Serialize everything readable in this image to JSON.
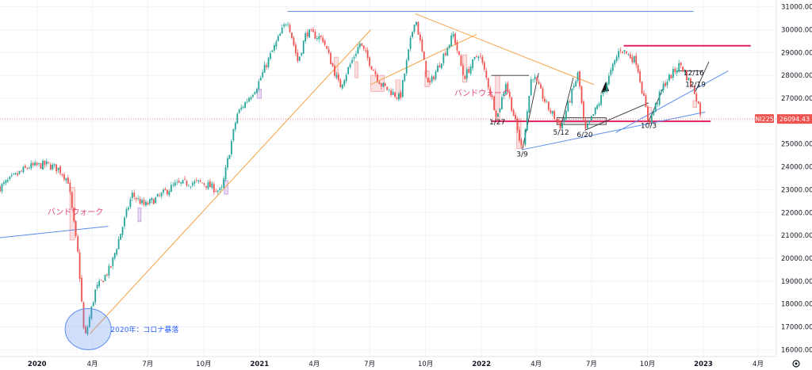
{
  "chart_data": {
    "type": "candlestick",
    "symbol": "NI225",
    "last_price": "26094.43",
    "ylim": [
      15700,
      31300
    ],
    "xlim": [
      "2019-11-01",
      "2023-05-01"
    ],
    "y_ticks": [
      16000,
      17000,
      18000,
      19000,
      20000,
      21000,
      22000,
      23000,
      24000,
      25000,
      26000,
      27000,
      28000,
      29000,
      30000,
      31000
    ],
    "y_tick_labels": [
      "16000.00",
      "17000.00",
      "18000.00",
      "19000.00",
      "20000.00",
      "21000.00",
      "22000.00",
      "23000.00",
      "24000.00",
      "25000.00",
      "26000.00",
      "27000.00",
      "28000.00",
      "29000.00",
      "30000.00",
      "31000.00"
    ],
    "x_ticks": [
      {
        "date": "2020-01-01",
        "label": "2020",
        "bold": true
      },
      {
        "date": "2020-04-01",
        "label": "4月"
      },
      {
        "date": "2020-07-01",
        "label": "7月"
      },
      {
        "date": "2020-10-01",
        "label": "10月"
      },
      {
        "date": "2021-01-01",
        "label": "2021",
        "bold": true
      },
      {
        "date": "2021-04-01",
        "label": "4月"
      },
      {
        "date": "2021-07-01",
        "label": "7月"
      },
      {
        "date": "2021-10-01",
        "label": "10月"
      },
      {
        "date": "2022-01-01",
        "label": "2022",
        "bold": true
      },
      {
        "date": "2022-04-01",
        "label": "4月"
      },
      {
        "date": "2022-07-01",
        "label": "7月"
      },
      {
        "date": "2022-10-01",
        "label": "10月"
      },
      {
        "date": "2023-01-01",
        "label": "2023",
        "bold": true
      },
      {
        "date": "2023-04-01",
        "label": "4月"
      }
    ],
    "price_path": [
      [
        "2019-11-01",
        23100
      ],
      [
        "2019-12-01",
        23700
      ],
      [
        "2019-12-18",
        24000
      ],
      [
        "2020-01-17",
        24100
      ],
      [
        "2020-02-06",
        23900
      ],
      [
        "2020-02-21",
        23400
      ],
      [
        "2020-03-09",
        20000
      ],
      [
        "2020-03-19",
        16400
      ],
      [
        "2020-04-06",
        18600
      ],
      [
        "2020-05-01",
        19600
      ],
      [
        "2020-06-05",
        22800
      ],
      [
        "2020-06-26",
        22300
      ],
      [
        "2020-07-20",
        22700
      ],
      [
        "2020-08-14",
        23200
      ],
      [
        "2020-09-04",
        23300
      ],
      [
        "2020-09-30",
        23300
      ],
      [
        "2020-10-30",
        22900
      ],
      [
        "2020-11-25",
        26300
      ],
      [
        "2020-12-29",
        27600
      ],
      [
        "2021-01-14",
        28600
      ],
      [
        "2021-02-16",
        30470
      ],
      [
        "2021-03-05",
        28600
      ],
      [
        "2021-03-19",
        29900
      ],
      [
        "2021-04-15",
        29600
      ],
      [
        "2021-05-13",
        27500
      ],
      [
        "2021-06-15",
        29400
      ],
      [
        "2021-07-20",
        27600
      ],
      [
        "2021-08-20",
        27000
      ],
      [
        "2021-09-14",
        30600
      ],
      [
        "2021-10-06",
        27500
      ],
      [
        "2021-11-16",
        29800
      ],
      [
        "2021-12-03",
        27900
      ],
      [
        "2021-12-28",
        29000
      ],
      [
        "2022-01-27",
        26170
      ],
      [
        "2022-02-10",
        27700
      ],
      [
        "2022-03-09",
        24700
      ],
      [
        "2022-03-25",
        28100
      ],
      [
        "2022-04-20",
        26600
      ],
      [
        "2022-05-12",
        25750
      ],
      [
        "2022-06-09",
        28100
      ],
      [
        "2022-06-20",
        25500
      ],
      [
        "2022-07-15",
        26900
      ],
      [
        "2022-08-17",
        29200
      ],
      [
        "2022-09-13",
        28600
      ],
      [
        "2022-10-03",
        25900
      ],
      [
        "2022-10-28",
        27600
      ],
      [
        "2022-11-24",
        28500
      ],
      [
        "2022-12-19",
        27200
      ],
      [
        "2022-12-30",
        26094
      ]
    ],
    "reference_lines": [
      {
        "from": [
          "2021-02-16",
          30800
        ],
        "to": [
          "2022-12-16",
          30800
        ],
        "color": "#5b8def"
      },
      {
        "from": [
          "2022-08-23",
          29300
        ],
        "to": [
          "2023-03-20",
          29300
        ],
        "color": "#e0245e"
      },
      {
        "from": [
          "2022-01-17",
          25990
        ],
        "to": [
          "2023-01-13",
          25990
        ],
        "color": "#e0245e"
      },
      {
        "from": [
          "2020-03-28",
          16700
        ],
        "to": [
          "2021-07-03",
          30000
        ],
        "color": "#f5a243"
      },
      {
        "from": [
          "2021-09-14",
          30700
        ],
        "to": [
          "2022-07-05",
          27600
        ],
        "color": "#f5a243"
      },
      {
        "from": [
          "2021-07-03",
          27600
        ],
        "to": [
          "2021-12-24",
          29800
        ],
        "color": "#f5a243"
      },
      {
        "from": [
          "2019-11-01",
          20900
        ],
        "to": [
          "2020-04-27",
          21400
        ],
        "color": "#5b8def"
      },
      {
        "from": [
          "2022-03-09",
          24750
        ],
        "to": [
          "2023-01-04",
          26400
        ],
        "color": "#5b8def"
      },
      {
        "from": [
          "2022-08-10",
          25500
        ],
        "to": [
          "2023-02-11",
          28200
        ],
        "color": "#5b8def"
      }
    ],
    "annotations": [
      {
        "date": "2022-01-27",
        "price": 25850,
        "text": "1/27"
      },
      {
        "date": "2022-03-09",
        "price": 24450,
        "text": "3/9"
      },
      {
        "date": "2022-05-12",
        "price": 25400,
        "text": "5/12"
      },
      {
        "date": "2022-06-20",
        "price": 25300,
        "text": "6/20"
      },
      {
        "date": "2022-10-03",
        "price": 25700,
        "text": "10/3"
      },
      {
        "date": "2022-12-19",
        "price": 27500,
        "text": "12/19"
      },
      {
        "date": "2022-12-16",
        "price": 28000,
        "text": "12/16"
      }
    ],
    "pink_labels": [
      {
        "date": "2020-03-04",
        "price": 21900,
        "text": "バンドウォーク"
      },
      {
        "date": "2022-01-02",
        "price": 27100,
        "text": "バンドウォーク"
      }
    ],
    "blue_labels": [
      {
        "date": "2020-05-01",
        "price": 16770,
        "text": "2020年：コロナ暴落"
      }
    ],
    "colors": {
      "up": "#26a69a",
      "down": "#ef5350",
      "grid": "#f0f3fa",
      "pink_line": "#e0245e",
      "orange_line": "#f5a243",
      "blue_line": "#5b8def"
    }
  }
}
